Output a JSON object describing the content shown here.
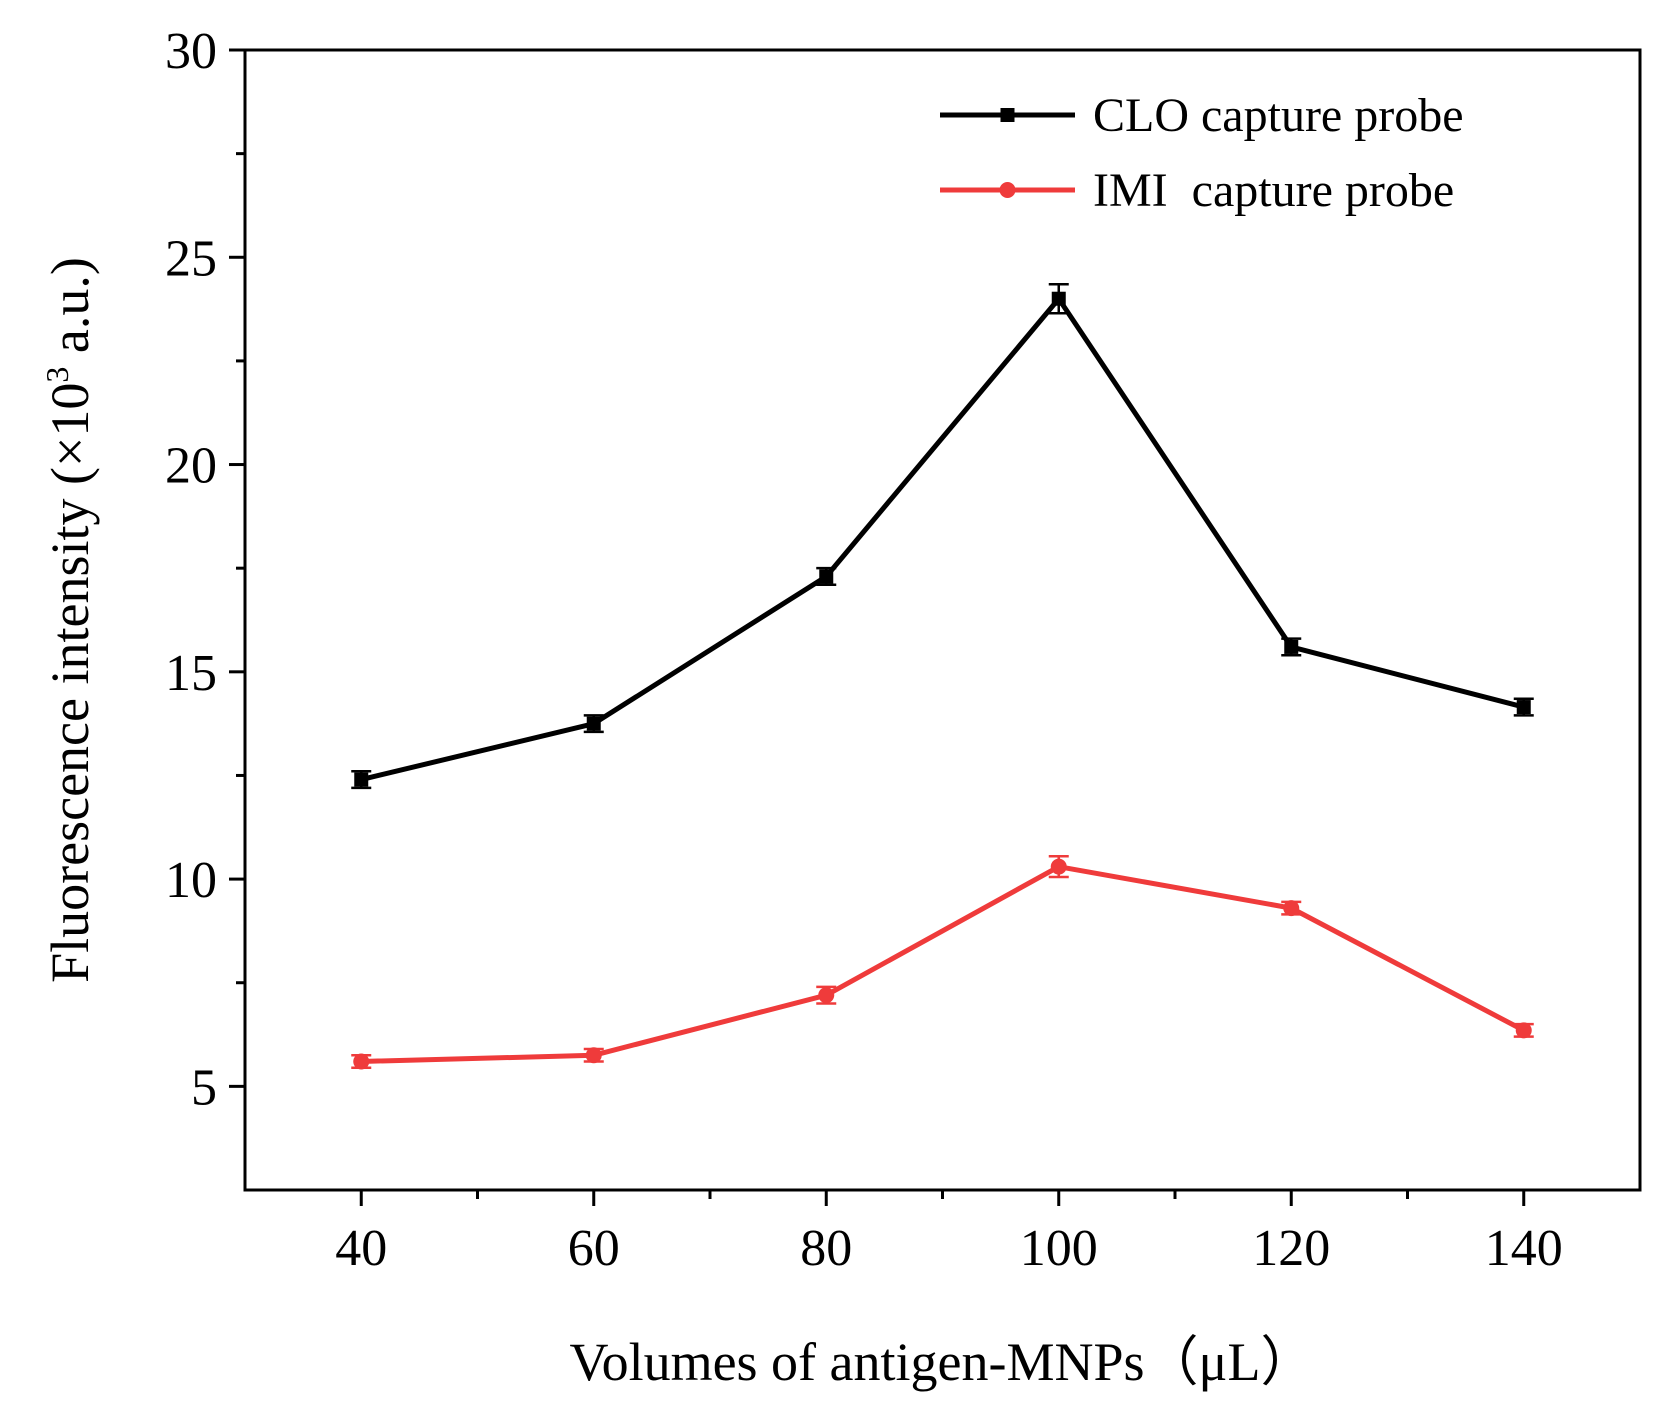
{
  "chart_data": {
    "type": "line",
    "title": "",
    "xlabel": "Volumes of antigen-MNPs（μL）",
    "ylabel_prefix": "Fluorescence intensity (×10",
    "ylabel_sup": "3",
    "ylabel_suffix": " a.u.)",
    "xlim": [
      30,
      150
    ],
    "ylim": [
      2.5,
      30
    ],
    "xticks": [
      40,
      60,
      80,
      100,
      120,
      140
    ],
    "xticks_minor": [
      50,
      70,
      90,
      110,
      130
    ],
    "yticks": [
      5,
      10,
      15,
      20,
      25,
      30
    ],
    "yticks_minor": [
      7.5,
      12.5,
      17.5,
      22.5,
      27.5
    ],
    "x": [
      40,
      60,
      80,
      100,
      120,
      140
    ],
    "series": [
      {
        "name": "CLO capture probe",
        "color": "#000000",
        "marker": "square",
        "values": [
          12.4,
          13.75,
          17.3,
          24.0,
          15.6,
          14.15
        ],
        "errors": [
          0.2,
          0.2,
          0.2,
          0.35,
          0.2,
          0.2
        ]
      },
      {
        "name": "IMI  capture probe",
        "color": "#ef3b3b",
        "marker": "circle",
        "values": [
          5.6,
          5.75,
          7.2,
          10.3,
          9.3,
          6.35
        ],
        "errors": [
          0.15,
          0.15,
          0.2,
          0.25,
          0.15,
          0.15
        ]
      }
    ],
    "legend_position": "top-right",
    "grid": false
  }
}
